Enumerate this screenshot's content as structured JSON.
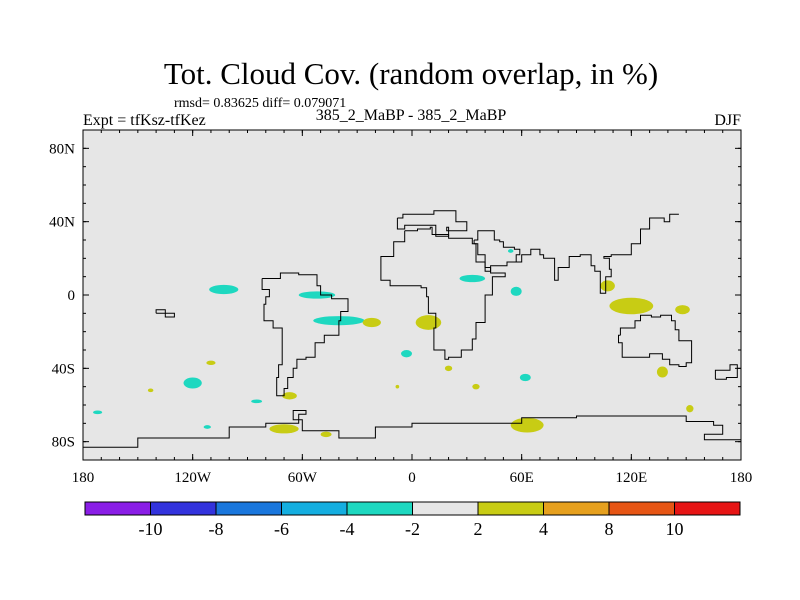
{
  "chart_data": {
    "type": "heatmap",
    "title": "Tot. Cloud Cov. (random overlap, in %)",
    "stats_text": "rmsd= 0.83625 diff= 0.079071",
    "left_label": "Expt = tfKsz-tfKez",
    "center_label": "385_2_MaBP - 385_2_MaBP",
    "right_label": "DJF",
    "xlim": [
      -180,
      180
    ],
    "ylim": [
      -90,
      90
    ],
    "x_ticks": [
      {
        "value": -180,
        "label": "180"
      },
      {
        "value": -120,
        "label": "120W"
      },
      {
        "value": -60,
        "label": "60W"
      },
      {
        "value": 0,
        "label": "0"
      },
      {
        "value": 60,
        "label": "60E"
      },
      {
        "value": 120,
        "label": "120E"
      },
      {
        "value": 180,
        "label": "180"
      }
    ],
    "y_ticks": [
      {
        "value": 80,
        "label": "80N"
      },
      {
        "value": 40,
        "label": "40N"
      },
      {
        "value": 0,
        "label": "0"
      },
      {
        "value": -40,
        "label": "40S"
      },
      {
        "value": -80,
        "label": "80S"
      }
    ],
    "colorbar": {
      "bins": [
        {
          "range": "< -10",
          "color": "#8a1ee6"
        },
        {
          "range": "-10 to -8",
          "color": "#3333dd"
        },
        {
          "range": "-8 to -6",
          "color": "#1a77dd"
        },
        {
          "range": "-6 to -4",
          "color": "#14aee0"
        },
        {
          "range": "-4 to -2",
          "color": "#1ed8c0"
        },
        {
          "range": "-2 to 2",
          "color": "#e6e6e6"
        },
        {
          "range": "2 to 4",
          "color": "#c8cc14"
        },
        {
          "range": "4 to 8",
          "color": "#e6a01e"
        },
        {
          "range": "8 to 10",
          "color": "#e65514"
        },
        {
          "range": "> 10",
          "color": "#e61414"
        }
      ],
      "labels": [
        "-10",
        "-8",
        "-6",
        "-4",
        "-2",
        "2",
        "4",
        "8",
        "10"
      ]
    },
    "background_value_range": "-2 to 2",
    "anomalies": [
      {
        "lon": -103,
        "lat": 3,
        "rx": 8,
        "ry": 2.5,
        "bin": "-4 to -2"
      },
      {
        "lon": -52,
        "lat": 0,
        "rx": 10,
        "ry": 2,
        "bin": "-4 to -2"
      },
      {
        "lon": -40,
        "lat": -14,
        "rx": 14,
        "ry": 2.5,
        "bin": "-4 to -2"
      },
      {
        "lon": -120,
        "lat": -48,
        "rx": 5,
        "ry": 3,
        "bin": "-4 to -2"
      },
      {
        "lon": -110,
        "lat": -37,
        "rx": 2.5,
        "ry": 1.2,
        "bin": "2 to 4"
      },
      {
        "lon": -143,
        "lat": -52,
        "rx": 1.5,
        "ry": 1,
        "bin": "2 to 4"
      },
      {
        "lon": -85,
        "lat": -58,
        "rx": 3,
        "ry": 1,
        "bin": "-4 to -2"
      },
      {
        "lon": -112,
        "lat": -72,
        "rx": 2,
        "ry": 1,
        "bin": "-4 to -2"
      },
      {
        "lon": -172,
        "lat": -64,
        "rx": 2.5,
        "ry": 1,
        "bin": "-4 to -2"
      },
      {
        "lon": -67,
        "lat": -55,
        "rx": 4,
        "ry": 2,
        "bin": "2 to 4"
      },
      {
        "lon": -70,
        "lat": -73,
        "rx": 8,
        "ry": 2.5,
        "bin": "2 to 4"
      },
      {
        "lon": -47,
        "lat": -76,
        "rx": 3,
        "ry": 1.5,
        "bin": "2 to 4"
      },
      {
        "lon": -22,
        "lat": -15,
        "rx": 5,
        "ry": 2.5,
        "bin": "2 to 4"
      },
      {
        "lon": 9,
        "lat": -15,
        "rx": 7,
        "ry": 4,
        "bin": "2 to 4"
      },
      {
        "lon": -3,
        "lat": -32,
        "rx": 3,
        "ry": 2,
        "bin": "-4 to -2"
      },
      {
        "lon": -8,
        "lat": -50,
        "rx": 1,
        "ry": 1,
        "bin": "2 to 4"
      },
      {
        "lon": 20,
        "lat": -40,
        "rx": 2,
        "ry": 1.5,
        "bin": "2 to 4"
      },
      {
        "lon": 35,
        "lat": -50,
        "rx": 2,
        "ry": 1.5,
        "bin": "2 to 4"
      },
      {
        "lon": 63,
        "lat": -71,
        "rx": 9,
        "ry": 4,
        "bin": "2 to 4"
      },
      {
        "lon": 33,
        "lat": 9,
        "rx": 7,
        "ry": 2,
        "bin": "-4 to -2"
      },
      {
        "lon": 57,
        "lat": 2,
        "rx": 3,
        "ry": 2.5,
        "bin": "-4 to -2"
      },
      {
        "lon": 54,
        "lat": 24,
        "rx": 1.5,
        "ry": 1,
        "bin": "-4 to -2"
      },
      {
        "lon": 62,
        "lat": -45,
        "rx": 3,
        "ry": 2,
        "bin": "-4 to -2"
      },
      {
        "lon": 107,
        "lat": 5,
        "rx": 4,
        "ry": 3,
        "bin": "2 to 4"
      },
      {
        "lon": 120,
        "lat": -6,
        "rx": 12,
        "ry": 4.5,
        "bin": "2 to 4"
      },
      {
        "lon": 148,
        "lat": -8,
        "rx": 4,
        "ry": 2.5,
        "bin": "2 to 4"
      },
      {
        "lon": 137,
        "lat": -42,
        "rx": 3,
        "ry": 3,
        "bin": "2 to 4"
      },
      {
        "lon": 152,
        "lat": -62,
        "rx": 2,
        "ry": 2,
        "bin": "2 to 4"
      }
    ],
    "coastlines": [
      [
        [
          -8,
          42
        ],
        [
          -5,
          44
        ],
        [
          10,
          44
        ],
        [
          12,
          46
        ],
        [
          24,
          44
        ],
        [
          24,
          40
        ],
        [
          28,
          40
        ],
        [
          30,
          35
        ],
        [
          22,
          35
        ],
        [
          19,
          37
        ],
        [
          20,
          32
        ],
        [
          15,
          32
        ],
        [
          13,
          38
        ],
        [
          3,
          38
        ],
        [
          -4,
          36
        ],
        [
          -8,
          42
        ]
      ],
      [
        [
          -4,
          35
        ],
        [
          3,
          36
        ],
        [
          10,
          37
        ],
        [
          11,
          33
        ],
        [
          20,
          31
        ],
        [
          32,
          31
        ],
        [
          33,
          28
        ],
        [
          36,
          22
        ],
        [
          40,
          15
        ],
        [
          43,
          12
        ],
        [
          51,
          12
        ],
        [
          51,
          10
        ],
        [
          44,
          0
        ],
        [
          40,
          -5
        ],
        [
          40,
          -15
        ],
        [
          35,
          -24
        ],
        [
          33,
          -30
        ],
        [
          27,
          -34
        ],
        [
          20,
          -35
        ],
        [
          18,
          -30
        ],
        [
          12,
          -18
        ],
        [
          13,
          -10
        ],
        [
          9,
          -1
        ],
        [
          8,
          4
        ],
        [
          5,
          5
        ],
        [
          -8,
          5
        ],
        [
          -12,
          8
        ],
        [
          -17,
          14
        ],
        [
          -17,
          21
        ],
        [
          -10,
          29
        ],
        [
          -4,
          35
        ]
      ],
      [
        [
          34,
          30
        ],
        [
          36,
          35
        ],
        [
          45,
          30
        ],
        [
          48,
          29
        ],
        [
          50,
          26
        ],
        [
          56,
          25
        ],
        [
          59,
          22
        ],
        [
          57,
          18
        ],
        [
          52,
          16
        ],
        [
          43,
          13
        ],
        [
          40,
          18
        ],
        [
          35,
          28
        ],
        [
          34,
          30
        ]
      ],
      [
        [
          57,
          18
        ],
        [
          60,
          22
        ],
        [
          65,
          25
        ],
        [
          70,
          22
        ],
        [
          72,
          20
        ],
        [
          78,
          8
        ],
        [
          80,
          15
        ],
        [
          86,
          21
        ],
        [
          92,
          22
        ],
        [
          98,
          16
        ],
        [
          100,
          13
        ],
        [
          103,
          1
        ],
        [
          106,
          10
        ],
        [
          109,
          14
        ],
        [
          108,
          20
        ],
        [
          105,
          21
        ],
        [
          109,
          22
        ],
        [
          120,
          28
        ],
        [
          125,
          36
        ],
        [
          130,
          42
        ],
        [
          138,
          40
        ],
        [
          141,
          44
        ],
        [
          146,
          44
        ]
      ],
      [
        [
          114,
          -22
        ],
        [
          113,
          -26
        ],
        [
          115,
          -34
        ],
        [
          122,
          -34
        ],
        [
          130,
          -32
        ],
        [
          137,
          -35
        ],
        [
          141,
          -38
        ],
        [
          146,
          -39
        ],
        [
          150,
          -37
        ],
        [
          153,
          -30
        ],
        [
          153,
          -25
        ],
        [
          146,
          -19
        ],
        [
          144,
          -14
        ],
        [
          142,
          -11
        ],
        [
          136,
          -12
        ],
        [
          131,
          -11
        ],
        [
          125,
          -14
        ],
        [
          122,
          -18
        ],
        [
          114,
          -22
        ]
      ],
      [
        [
          -82,
          9
        ],
        [
          -77,
          9
        ],
        [
          -72,
          12
        ],
        [
          -62,
          11
        ],
        [
          -52,
          5
        ],
        [
          -50,
          0
        ],
        [
          -44,
          -2
        ],
        [
          -35,
          -5
        ],
        [
          -35,
          -9
        ],
        [
          -39,
          -14
        ],
        [
          -40,
          -22
        ],
        [
          -48,
          -26
        ],
        [
          -53,
          -34
        ],
        [
          -58,
          -35
        ],
        [
          -63,
          -40
        ],
        [
          -65,
          -45
        ],
        [
          -68,
          -51
        ],
        [
          -70,
          -55
        ],
        [
          -74,
          -52
        ],
        [
          -74,
          -45
        ],
        [
          -73,
          -38
        ],
        [
          -71,
          -30
        ],
        [
          -71,
          -18
        ],
        [
          -76,
          -14
        ],
        [
          -81,
          -5
        ],
        [
          -80,
          -1
        ],
        [
          -78,
          3
        ],
        [
          -82,
          9
        ]
      ],
      [
        [
          -180,
          -83
        ],
        [
          -150,
          -78
        ],
        [
          -100,
          -72
        ],
        [
          -80,
          -70
        ],
        [
          -62,
          -65
        ],
        [
          -58,
          -63
        ],
        [
          -65,
          -68
        ],
        [
          -60,
          -74
        ],
        [
          -40,
          -78
        ],
        [
          -20,
          -72
        ],
        [
          0,
          -70
        ],
        [
          30,
          -70
        ],
        [
          60,
          -67
        ],
        [
          90,
          -66
        ],
        [
          120,
          -66
        ],
        [
          150,
          -69
        ],
        [
          165,
          -71
        ],
        [
          170,
          -76
        ],
        [
          160,
          -79
        ],
        [
          180,
          -84
        ]
      ],
      [
        [
          -140,
          -10
        ],
        [
          -135,
          -12
        ],
        [
          -130,
          -10
        ],
        [
          -135,
          -8
        ],
        [
          -140,
          -10
        ]
      ],
      [
        [
          166,
          -46
        ],
        [
          172,
          -45
        ],
        [
          178,
          -38
        ],
        [
          174,
          -41
        ],
        [
          166,
          -46
        ]
      ]
    ]
  }
}
